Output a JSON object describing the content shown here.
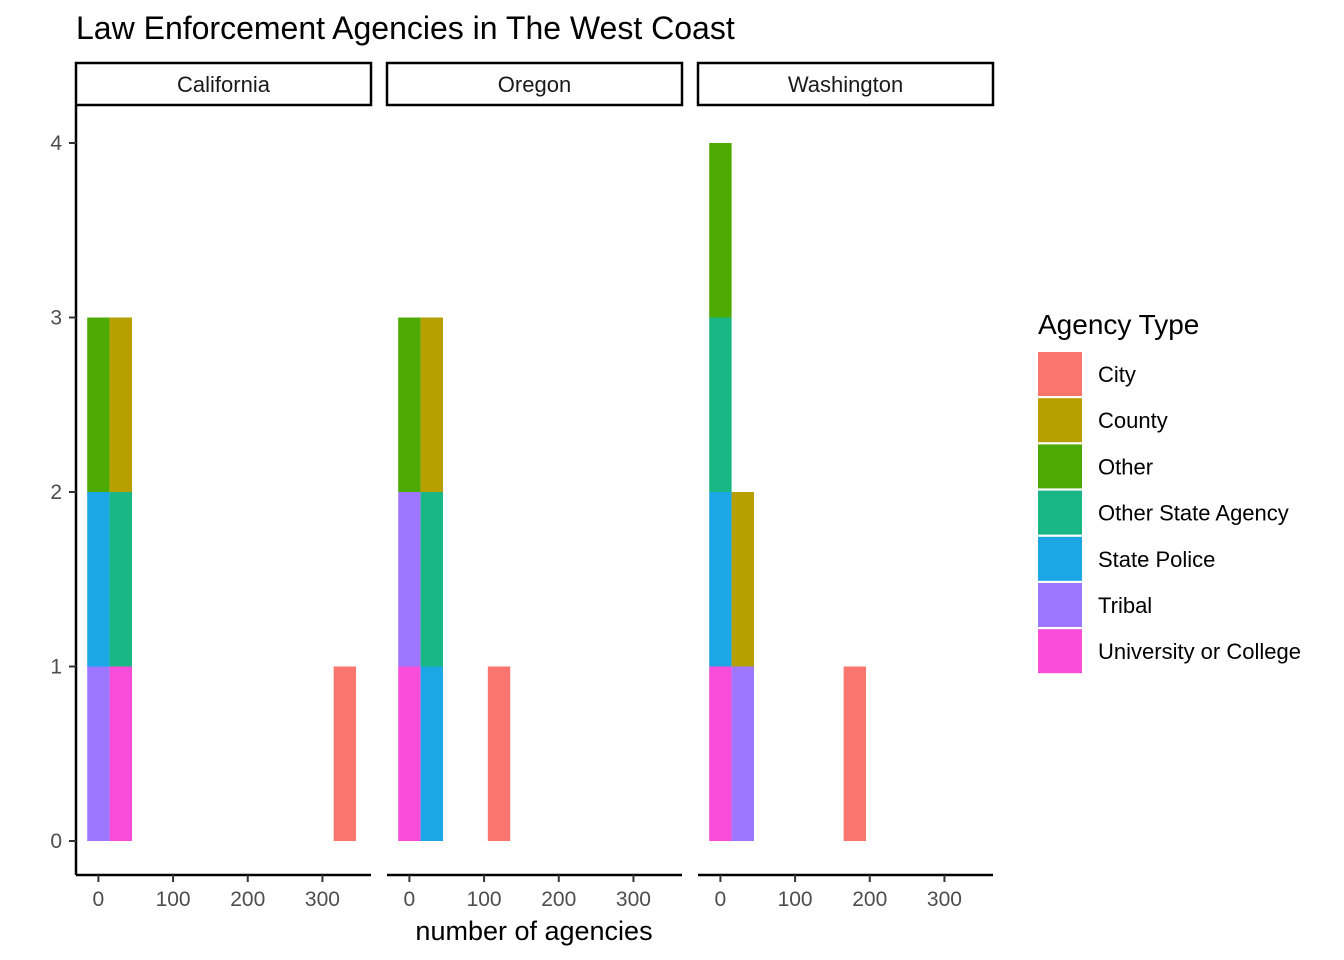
{
  "chart_data": {
    "type": "bar",
    "subtype": "faceted-stacked-histogram",
    "title": "Law Enforcement Agencies in The West Coast",
    "xlabel": "number of agencies",
    "ylabel": "",
    "xlim": [
      -30,
      365
    ],
    "ylim": [
      -0.18,
      4.2
    ],
    "x_ticks": [
      0,
      100,
      200,
      300
    ],
    "y_ticks": [
      0,
      1,
      2,
      3,
      4
    ],
    "bin_width": 30,
    "legend": {
      "title": "Agency Type",
      "position": "right",
      "entries": [
        {
          "name": "City",
          "color": "#F8766D"
        },
        {
          "name": "County",
          "color": "#B79F00"
        },
        {
          "name": "Other",
          "color": "#4DAA00"
        },
        {
          "name": "Other State Agency",
          "color": "#18B784"
        },
        {
          "name": "State Police",
          "color": "#1BA6E6"
        },
        {
          "name": "Tribal",
          "color": "#9D78FF"
        },
        {
          "name": "University or College",
          "color": "#F84DD9"
        }
      ]
    },
    "facets": [
      {
        "name": "California",
        "bars": [
          {
            "x": 0,
            "segments": [
              {
                "type": "Tribal",
                "count": 1
              },
              {
                "type": "State Police",
                "count": 1
              },
              {
                "type": "Other",
                "count": 1
              }
            ]
          },
          {
            "x": 30,
            "segments": [
              {
                "type": "University or College",
                "count": 1
              },
              {
                "type": "Other State Agency",
                "count": 1
              },
              {
                "type": "County",
                "count": 1
              }
            ]
          },
          {
            "x": 330,
            "segments": [
              {
                "type": "City",
                "count": 1
              }
            ]
          }
        ]
      },
      {
        "name": "Oregon",
        "bars": [
          {
            "x": 0,
            "segments": [
              {
                "type": "University or College",
                "count": 1
              },
              {
                "type": "Tribal",
                "count": 1
              },
              {
                "type": "Other",
                "count": 1
              }
            ]
          },
          {
            "x": 30,
            "segments": [
              {
                "type": "State Police",
                "count": 1
              },
              {
                "type": "Other State Agency",
                "count": 1
              },
              {
                "type": "County",
                "count": 1
              }
            ]
          },
          {
            "x": 120,
            "segments": [
              {
                "type": "City",
                "count": 1
              }
            ]
          }
        ]
      },
      {
        "name": "Washington",
        "bars": [
          {
            "x": 0,
            "segments": [
              {
                "type": "University or College",
                "count": 1
              },
              {
                "type": "State Police",
                "count": 1
              },
              {
                "type": "Other State Agency",
                "count": 1
              },
              {
                "type": "Other",
                "count": 1
              }
            ]
          },
          {
            "x": 30,
            "segments": [
              {
                "type": "Tribal",
                "count": 1
              },
              {
                "type": "County",
                "count": 1
              }
            ]
          },
          {
            "x": 180,
            "segments": [
              {
                "type": "City",
                "count": 1
              }
            ]
          }
        ]
      }
    ]
  }
}
